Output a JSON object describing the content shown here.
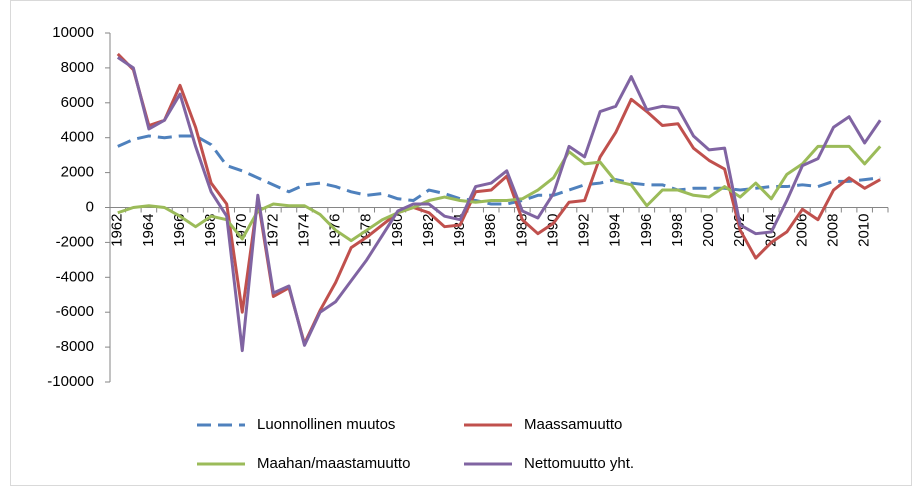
{
  "chart_data": {
    "type": "line",
    "categories": [
      "1962",
      null,
      "1964",
      null,
      "1966",
      null,
      "1968",
      null,
      "1970",
      null,
      "1972",
      null,
      "1974",
      null,
      "1976",
      null,
      "1978",
      null,
      "1980",
      null,
      "1982",
      null,
      "1984",
      null,
      "1986",
      null,
      "1988",
      null,
      "1990",
      null,
      "1992",
      null,
      "1994",
      null,
      "1996",
      null,
      "1998",
      null,
      "2000",
      null,
      "2002",
      null,
      "2004",
      null,
      "2006",
      null,
      "2008",
      null,
      "2010",
      null
    ],
    "series": [
      {
        "name": "Luonnollinen muutos",
        "color": "#4f81bd",
        "dash": true,
        "values": [
          3500,
          3900,
          4100,
          4000,
          4100,
          4100,
          3600,
          2400,
          2100,
          1700,
          1300,
          900,
          1300,
          1400,
          1200,
          900,
          700,
          800,
          500,
          400,
          1000,
          800,
          500,
          400,
          200,
          200,
          400,
          700,
          700,
          1000,
          1300,
          1400,
          1600,
          1400,
          1300,
          1300,
          1000,
          1100,
          1100,
          1100,
          1000,
          1100,
          1200,
          1200,
          1300,
          1200,
          1500,
          1500,
          1600,
          1700
        ]
      },
      {
        "name": "Maassamuutto",
        "color": "#c0504d",
        "values": [
          8800,
          7900,
          4700,
          5000,
          7000,
          4600,
          1400,
          200,
          -6000,
          500,
          -5100,
          -4600,
          -7800,
          -5900,
          -4300,
          -2300,
          -1700,
          -1000,
          -300,
          0,
          -300,
          -1100,
          -1000,
          900,
          1000,
          1800,
          -700,
          -1500,
          -900,
          300,
          400,
          2900,
          4300,
          6200,
          5500,
          4700,
          4800,
          3400,
          2700,
          2200,
          -1300,
          -2900,
          -2000,
          -1400,
          -100,
          -700,
          1000,
          1700,
          1100,
          1600
        ]
      },
      {
        "name": "Maahan/maastamuutto",
        "color": "#9bbb59",
        "values": [
          -300,
          0,
          100,
          0,
          -500,
          -1100,
          -500,
          -700,
          -1800,
          -200,
          200,
          100,
          100,
          -400,
          -1300,
          -1900,
          -1300,
          -700,
          -300,
          0,
          400,
          600,
          400,
          300,
          400,
          400,
          500,
          1000,
          1700,
          3200,
          2500,
          2600,
          1500,
          1300,
          100,
          1000,
          1000,
          700,
          600,
          1200,
          600,
          1400,
          500,
          1900,
          2500,
          3500,
          3500,
          3500,
          2500,
          3500
        ]
      },
      {
        "name": "Nettomuutto yht.",
        "color": "#8064a2",
        "values": [
          8600,
          8000,
          4500,
          5000,
          6500,
          3500,
          900,
          -500,
          -8200,
          700,
          -4900,
          -4500,
          -7900,
          -6000,
          -5400,
          -4200,
          -3000,
          -1600,
          -200,
          200,
          200,
          -500,
          -700,
          1200,
          1400,
          2100,
          -200,
          -600,
          800,
          3500,
          2900,
          5500,
          5800,
          7500,
          5600,
          5800,
          5700,
          4100,
          3300,
          3400,
          -1000,
          -1500,
          -1400,
          400,
          2400,
          2800,
          4600,
          5200,
          3700,
          5000
        ]
      }
    ],
    "ylim": [
      -10000,
      10000
    ],
    "yticks": [
      -10000,
      -8000,
      -6000,
      -4000,
      -2000,
      0,
      2000,
      4000,
      6000,
      8000,
      10000
    ],
    "grid": false,
    "legend": "bottom"
  }
}
